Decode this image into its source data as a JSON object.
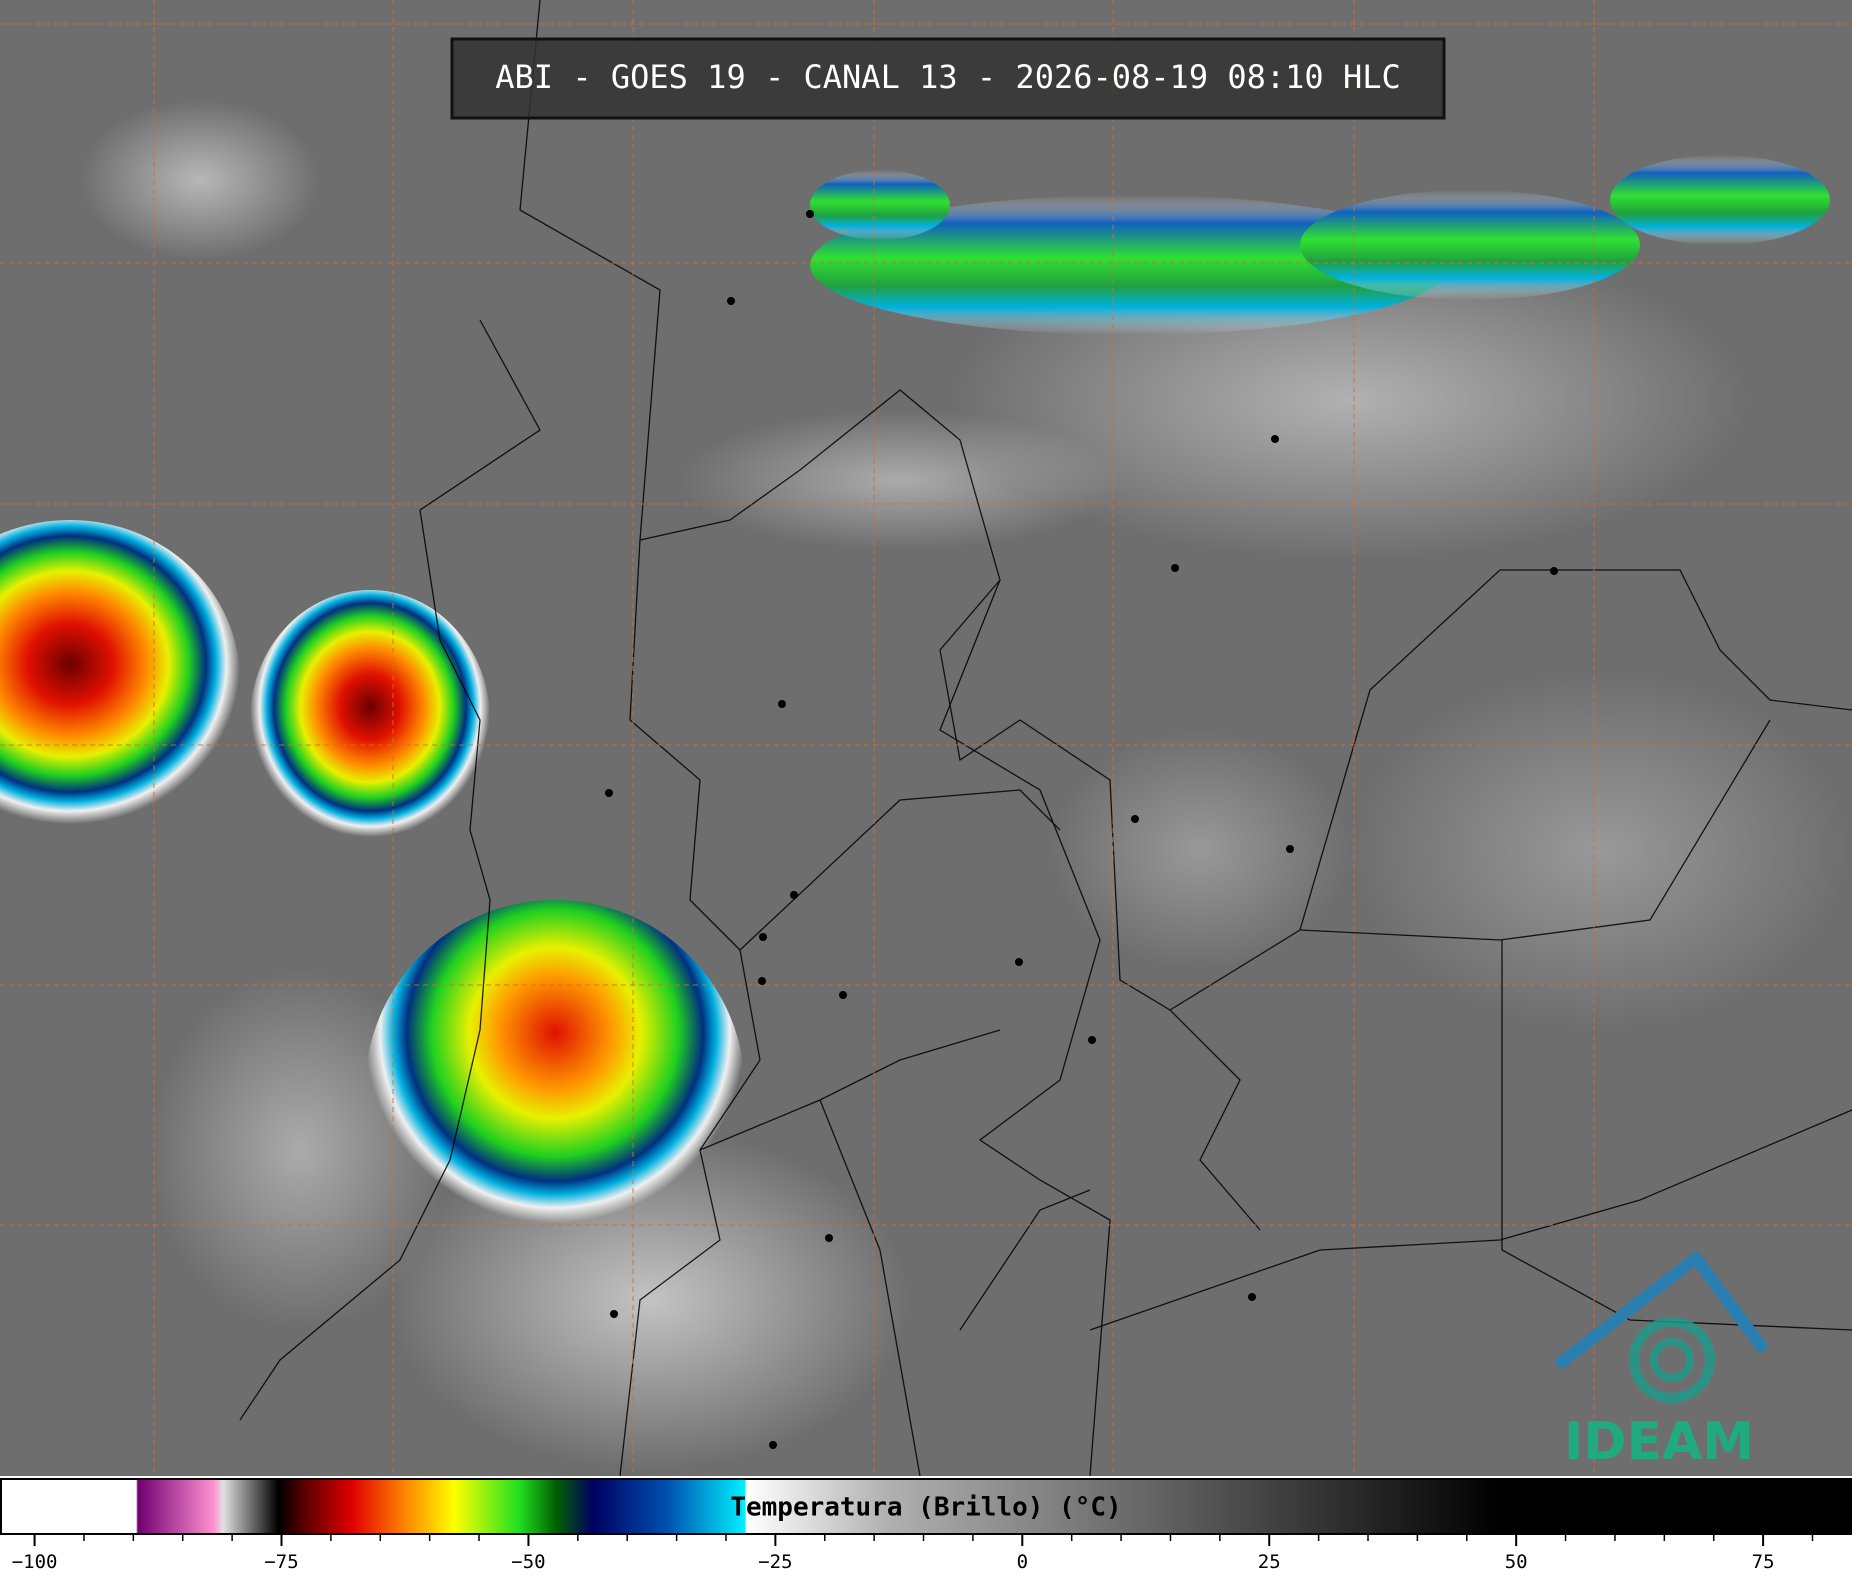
{
  "title": "ABI - GOES 19 - CANAL 13 - 2026-08-19 08:10 HLC",
  "colorbar": {
    "label": "Temperatura (Brillo) (°C)",
    "range": [
      -103.5,
      84
    ],
    "ticks": [
      {
        "value": -100,
        "label": "−100"
      },
      {
        "value": -75,
        "label": "−75"
      },
      {
        "value": -50,
        "label": "−50"
      },
      {
        "value": -25,
        "label": "−25"
      },
      0,
      25,
      50,
      75
    ]
  },
  "logo": "IDEAM"
}
